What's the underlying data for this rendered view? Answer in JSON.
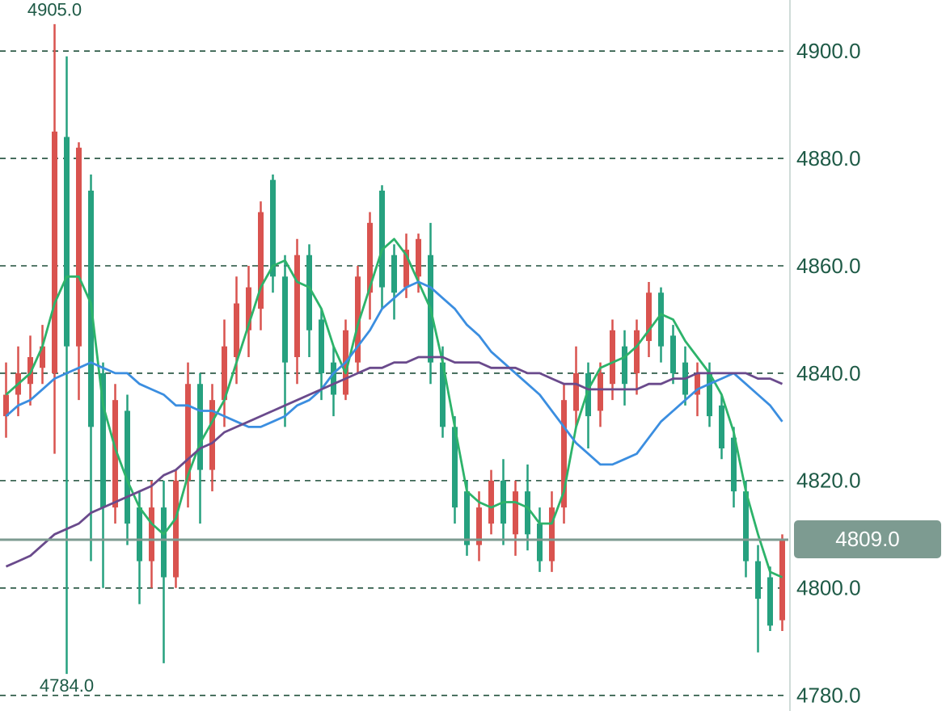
{
  "chart_data": {
    "type": "candlestick",
    "ylim": [
      4777.1,
      4909.5
    ],
    "yticks": [
      {
        "value": 4780,
        "label": "4780.0"
      },
      {
        "value": 4800,
        "label": "4800.0"
      },
      {
        "value": 4820,
        "label": "4820.0"
      },
      {
        "value": 4840,
        "label": "4840.0"
      },
      {
        "value": 4860,
        "label": "4860.0"
      },
      {
        "value": 4880,
        "label": "4880.0"
      },
      {
        "value": 4900,
        "label": "4900.0"
      }
    ],
    "grid": true,
    "up_color": "#d9534f",
    "down_color": "#26a17f",
    "open": [
      4832,
      4836,
      4838,
      4841,
      4840,
      4884,
      4845,
      4874,
      4840,
      4815,
      4833,
      4815,
      4805,
      4815,
      4802,
      4820,
      4838,
      4822,
      4835,
      4843,
      4848,
      4852,
      4876,
      4858,
      4843,
      4862,
      4850,
      4842,
      4836,
      4842,
      4855,
      4874,
      4862,
      4856,
      4858,
      4862,
      4842,
      4830,
      4818,
      4808,
      4812,
      4820,
      4810,
      4818,
      4812,
      4805,
      4815,
      4833,
      4840,
      4833,
      4838,
      4845,
      4840,
      4846,
      4855,
      4847,
      4842,
      4836,
      4840,
      4834,
      4828,
      4818,
      4805,
      4802,
      4794
    ],
    "high": [
      4842,
      4845,
      4847,
      4849,
      4905,
      4899,
      4883,
      4877,
      4842,
      4838,
      4836,
      4818,
      4820,
      4820,
      4822,
      4842,
      4840,
      4838,
      4850,
      4858,
      4860,
      4872,
      4877,
      4862,
      4865,
      4864,
      4852,
      4845,
      4850,
      4860,
      4870,
      4875,
      4864,
      4866,
      4866,
      4868,
      4845,
      4832,
      4820,
      4818,
      4822,
      4824,
      4820,
      4823,
      4815,
      4818,
      4838,
      4845,
      4842,
      4842,
      4850,
      4848,
      4850,
      4857,
      4856,
      4849,
      4845,
      4842,
      4842,
      4836,
      4830,
      4820,
      4808,
      4804,
      4810
    ],
    "low": [
      4828,
      4832,
      4834,
      4838,
      4825,
      4784,
      4835,
      4805,
      4800,
      4812,
      4808,
      4797,
      4800,
      4786,
      4800,
      4815,
      4812,
      4818,
      4830,
      4838,
      4843,
      4848,
      4855,
      4830,
      4838,
      4843,
      4835,
      4832,
      4835,
      4840,
      4850,
      4852,
      4850,
      4854,
      4855,
      4838,
      4828,
      4812,
      4806,
      4805,
      4810,
      4808,
      4806,
      4807,
      4803,
      4803,
      4812,
      4830,
      4826,
      4830,
      4835,
      4834,
      4836,
      4843,
      4842,
      4838,
      4834,
      4832,
      4830,
      4824,
      4815,
      4802,
      4788,
      4792,
      4792
    ],
    "close": [
      4836,
      4840,
      4843,
      4845,
      4885,
      4845,
      4882,
      4830,
      4815,
      4835,
      4812,
      4805,
      4815,
      4802,
      4820,
      4838,
      4822,
      4835,
      4845,
      4853,
      4856,
      4870,
      4858,
      4842,
      4862,
      4848,
      4840,
      4836,
      4848,
      4858,
      4868,
      4856,
      4855,
      4863,
      4865,
      4842,
      4830,
      4815,
      4808,
      4815,
      4820,
      4812,
      4818,
      4810,
      4805,
      4815,
      4835,
      4840,
      4832,
      4840,
      4848,
      4838,
      4848,
      4855,
      4845,
      4840,
      4836,
      4840,
      4832,
      4826,
      4818,
      4805,
      4798,
      4793,
      4809
    ],
    "moving_averages": [
      {
        "color": "#2db36a",
        "values": [
          4836,
          4838,
          4840,
          4845,
          4853,
          4858,
          4858,
          4853,
          4834,
          4826,
          4820,
          4815,
          4812,
          4810,
          4813,
          4821,
          4827,
          4831,
          4835,
          4842,
          4849,
          4856,
          4860,
          4861,
          4857,
          4856,
          4852,
          4845,
          4840,
          4849,
          4856,
          4863,
          4865,
          4862,
          4857,
          4852,
          4842,
          4830,
          4818,
          4816,
          4815,
          4816,
          4816,
          4815,
          4812,
          4812,
          4818,
          4830,
          4837,
          4841,
          4842,
          4843,
          4845,
          4848,
          4851,
          4850,
          4846,
          4843,
          4840,
          4836,
          4829,
          4818,
          4810,
          4803,
          4802
        ]
      },
      {
        "color": "#3b8ee0",
        "values": [
          4832,
          4834,
          4835,
          4837,
          4839,
          4840,
          4841,
          4842,
          4841,
          4840,
          4840,
          4838,
          4837,
          4836,
          4834,
          4834,
          4833,
          4833,
          4832,
          4831,
          4830,
          4830,
          4831,
          4832,
          4834,
          4835,
          4837,
          4840,
          4842,
          4845,
          4848,
          4852,
          4854,
          4856,
          4857,
          4856,
          4854,
          4852,
          4849,
          4847,
          4844,
          4842,
          4840,
          4838,
          4836,
          4833,
          4830,
          4827,
          4825,
          4823,
          4823,
          4824,
          4825,
          4828,
          4831,
          4833,
          4835,
          4837,
          4838,
          4839,
          4840,
          4838,
          4836,
          4834,
          4831
        ]
      },
      {
        "color": "#6a4a8c",
        "values": [
          4804,
          4805,
          4806,
          4808,
          4810,
          4811,
          4812,
          4814,
          4815,
          4816,
          4817,
          4818,
          4819,
          4821,
          4822,
          4824,
          4826,
          4827,
          4829,
          4830,
          4831,
          4832,
          4833,
          4834,
          4835,
          4836,
          4837,
          4838,
          4839,
          4840,
          4841,
          4841,
          4842,
          4842,
          4843,
          4843,
          4843,
          4842,
          4842,
          4842,
          4841,
          4841,
          4841,
          4840,
          4840,
          4839,
          4838,
          4838,
          4837,
          4837,
          4837,
          4837,
          4837,
          4838,
          4838,
          4839,
          4839,
          4840,
          4840,
          4840,
          4840,
          4840,
          4839,
          4839,
          4838
        ]
      }
    ],
    "price_line": {
      "value": 4809,
      "label": "4809.0",
      "color": "#7d9b91"
    },
    "extreme_labels": [
      {
        "value": 4905,
        "label": "4905.0"
      },
      {
        "value": 4784,
        "label": "4784.0"
      }
    ]
  }
}
